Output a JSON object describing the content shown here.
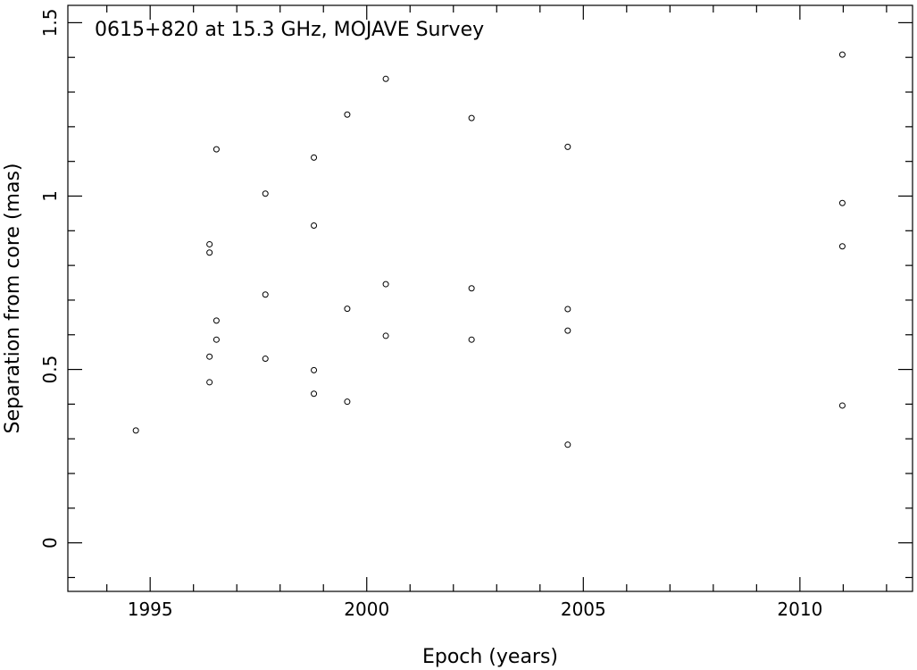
{
  "chart_data": {
    "type": "scatter",
    "title": "0615+820 at 15.3 GHz, MOJAVE Survey",
    "xlabel": "Epoch (years)",
    "ylabel": "Separation from core (mas)",
    "xlim": [
      1993.1,
      2012.6
    ],
    "ylim": [
      -0.14,
      1.55
    ],
    "x_major_ticks": [
      1995,
      2000,
      2005,
      2010
    ],
    "x_tick_labels": [
      "1995",
      "2000",
      "2005",
      "2010"
    ],
    "x_minor_step": 1,
    "y_major_ticks": [
      0,
      0.5,
      1,
      1.5
    ],
    "y_tick_labels": [
      "0",
      "0.5",
      "1",
      "1.5"
    ],
    "y_minor_step": 0.1,
    "grid": false,
    "series": [
      {
        "marker": "open-circle",
        "x": [
          1994.67,
          1996.37,
          1996.37,
          1996.37,
          1996.37,
          1996.53,
          1996.53,
          1996.53,
          1997.66,
          1997.66,
          1997.66,
          1998.78,
          1998.78,
          1998.78,
          1998.78,
          1999.55,
          1999.55,
          1999.55,
          2000.44,
          2000.44,
          2000.44,
          2002.42,
          2002.42,
          2002.42,
          2004.64,
          2004.64,
          2004.64,
          2004.64,
          2010.98,
          2010.98,
          2010.98,
          2010.98
        ],
        "y": [
          0.324,
          0.861,
          0.837,
          0.537,
          0.463,
          1.135,
          0.641,
          0.586,
          1.007,
          0.716,
          0.531,
          1.111,
          0.915,
          0.498,
          0.43,
          1.235,
          0.675,
          0.407,
          1.338,
          0.746,
          0.597,
          1.225,
          0.734,
          0.586,
          1.142,
          0.674,
          0.612,
          0.283,
          1.408,
          0.98,
          0.855,
          0.396
        ]
      }
    ]
  }
}
